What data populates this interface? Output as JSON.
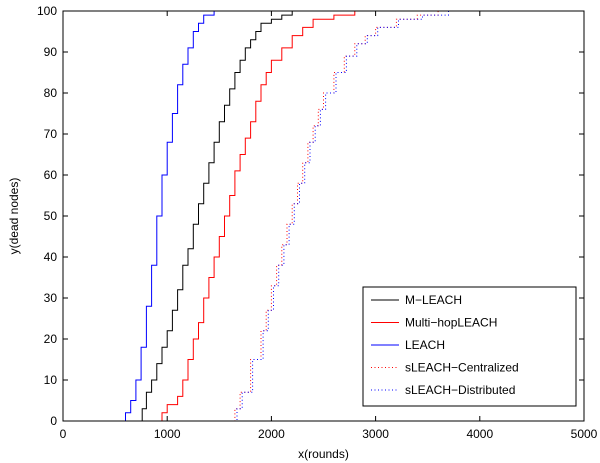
{
  "chart_data": {
    "type": "line",
    "title": "",
    "xlabel": "x(rounds)",
    "ylabel": "y(dead nodes)",
    "xlim": [
      0,
      5000
    ],
    "ylim": [
      0,
      100
    ],
    "xticks": [
      "0",
      "1000",
      "2000",
      "3000",
      "4000",
      "5000"
    ],
    "yticks": [
      "0",
      "10",
      "20",
      "30",
      "40",
      "50",
      "60",
      "70",
      "80",
      "90",
      "100"
    ],
    "grid": false,
    "legend_position": "bottom-right",
    "series": [
      {
        "name": "M−LEACH",
        "color": "#000000",
        "style": "solid",
        "points": [
          [
            0,
            0
          ],
          [
            700,
            0
          ],
          [
            760,
            3
          ],
          [
            800,
            7
          ],
          [
            850,
            10
          ],
          [
            900,
            14
          ],
          [
            950,
            18
          ],
          [
            1000,
            22
          ],
          [
            1050,
            27
          ],
          [
            1100,
            32
          ],
          [
            1150,
            38
          ],
          [
            1200,
            42
          ],
          [
            1250,
            48
          ],
          [
            1300,
            53
          ],
          [
            1350,
            58
          ],
          [
            1400,
            63
          ],
          [
            1450,
            68
          ],
          [
            1500,
            73
          ],
          [
            1550,
            77
          ],
          [
            1600,
            81
          ],
          [
            1650,
            85
          ],
          [
            1700,
            88
          ],
          [
            1750,
            91
          ],
          [
            1800,
            93
          ],
          [
            1850,
            95
          ],
          [
            1900,
            97
          ],
          [
            2000,
            98
          ],
          [
            2100,
            99
          ],
          [
            2200,
            100
          ],
          [
            5000,
            100
          ]
        ]
      },
      {
        "name": "Multi−hopLEACH",
        "color": "#ff0000",
        "style": "solid",
        "points": [
          [
            0,
            0
          ],
          [
            880,
            0
          ],
          [
            950,
            2
          ],
          [
            1000,
            4
          ],
          [
            1100,
            6
          ],
          [
            1150,
            10
          ],
          [
            1200,
            15
          ],
          [
            1250,
            20
          ],
          [
            1300,
            24
          ],
          [
            1350,
            30
          ],
          [
            1400,
            35
          ],
          [
            1450,
            40
          ],
          [
            1500,
            45
          ],
          [
            1550,
            50
          ],
          [
            1600,
            55
          ],
          [
            1650,
            61
          ],
          [
            1700,
            65
          ],
          [
            1750,
            69
          ],
          [
            1800,
            73
          ],
          [
            1850,
            78
          ],
          [
            1900,
            82
          ],
          [
            1950,
            85
          ],
          [
            2000,
            88
          ],
          [
            2100,
            91
          ],
          [
            2200,
            94
          ],
          [
            2300,
            96
          ],
          [
            2400,
            98
          ],
          [
            2600,
            99
          ],
          [
            2800,
            100
          ],
          [
            5000,
            100
          ]
        ]
      },
      {
        "name": "LEACH",
        "color": "#0000ff",
        "style": "solid",
        "points": [
          [
            0,
            0
          ],
          [
            550,
            0
          ],
          [
            600,
            2
          ],
          [
            650,
            5
          ],
          [
            700,
            10
          ],
          [
            750,
            18
          ],
          [
            800,
            28
          ],
          [
            850,
            38
          ],
          [
            900,
            50
          ],
          [
            950,
            60
          ],
          [
            1000,
            68
          ],
          [
            1050,
            75
          ],
          [
            1100,
            82
          ],
          [
            1150,
            87
          ],
          [
            1200,
            91
          ],
          [
            1250,
            95
          ],
          [
            1300,
            97
          ],
          [
            1350,
            99
          ],
          [
            1450,
            100
          ],
          [
            5000,
            100
          ]
        ]
      },
      {
        "name": "sLEACH−Centralized",
        "color": "#ff0000",
        "style": "dotted",
        "points": [
          [
            0,
            0
          ],
          [
            1580,
            0
          ],
          [
            1650,
            3
          ],
          [
            1700,
            7
          ],
          [
            1800,
            15
          ],
          [
            1900,
            22
          ],
          [
            1950,
            27
          ],
          [
            2000,
            33
          ],
          [
            2050,
            38
          ],
          [
            2100,
            43
          ],
          [
            2150,
            48
          ],
          [
            2200,
            53
          ],
          [
            2250,
            58
          ],
          [
            2300,
            63
          ],
          [
            2350,
            68
          ],
          [
            2400,
            72
          ],
          [
            2450,
            76
          ],
          [
            2500,
            80
          ],
          [
            2600,
            85
          ],
          [
            2700,
            89
          ],
          [
            2800,
            92
          ],
          [
            2900,
            94
          ],
          [
            3000,
            96
          ],
          [
            3200,
            98
          ],
          [
            3400,
            99
          ],
          [
            3600,
            100
          ],
          [
            5000,
            100
          ]
        ]
      },
      {
        "name": "sLEACH−Distributed",
        "color": "#0000ff",
        "style": "dotted",
        "points": [
          [
            0,
            0
          ],
          [
            1600,
            0
          ],
          [
            1670,
            3
          ],
          [
            1720,
            7
          ],
          [
            1820,
            15
          ],
          [
            1920,
            22
          ],
          [
            1970,
            27
          ],
          [
            2020,
            33
          ],
          [
            2070,
            38
          ],
          [
            2120,
            43
          ],
          [
            2170,
            48
          ],
          [
            2220,
            53
          ],
          [
            2270,
            58
          ],
          [
            2320,
            63
          ],
          [
            2370,
            68
          ],
          [
            2420,
            72
          ],
          [
            2470,
            76
          ],
          [
            2520,
            80
          ],
          [
            2620,
            85
          ],
          [
            2720,
            89
          ],
          [
            2820,
            92
          ],
          [
            2920,
            94
          ],
          [
            3020,
            96
          ],
          [
            3220,
            98
          ],
          [
            3450,
            99
          ],
          [
            3700,
            100
          ],
          [
            5000,
            100
          ]
        ]
      }
    ]
  }
}
